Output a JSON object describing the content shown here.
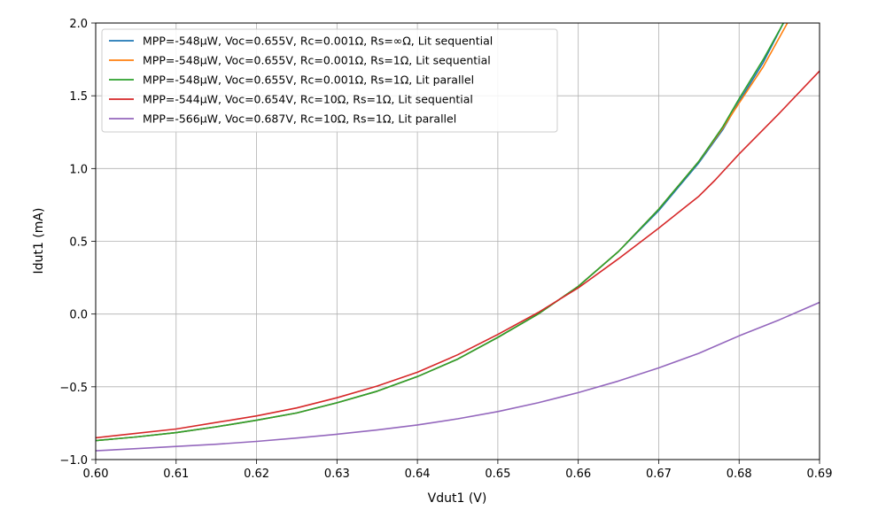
{
  "chart_data": {
    "type": "line",
    "title": "",
    "xlabel": "Vdut1 (V)",
    "ylabel": "Idut1 (mA)",
    "xlim": [
      0.6,
      0.69
    ],
    "ylim": [
      -1.0,
      2.0
    ],
    "xticks": [
      "0.60",
      "0.61",
      "0.62",
      "0.63",
      "0.64",
      "0.65",
      "0.66",
      "0.67",
      "0.68",
      "0.69"
    ],
    "yticks": [
      "2.0",
      "1.5",
      "1.0",
      "0.5",
      "0.0",
      "−0.5",
      "−1.0"
    ],
    "grid": true,
    "legend_position": "top-left",
    "series": [
      {
        "name": "MPP=-548µW, Voc=0.655V, Rc=0.001Ω, Rs=∞Ω, Lit sequential",
        "color": "#1f77b4",
        "x": [
          0.6,
          0.605,
          0.61,
          0.615,
          0.62,
          0.625,
          0.63,
          0.635,
          0.64,
          0.645,
          0.65,
          0.655,
          0.66,
          0.665,
          0.67,
          0.675,
          0.678,
          0.68,
          0.683,
          0.6855
        ],
        "y": [
          -0.87,
          -0.845,
          -0.815,
          -0.775,
          -0.73,
          -0.68,
          -0.61,
          -0.53,
          -0.43,
          -0.31,
          -0.16,
          0.0,
          0.19,
          0.43,
          0.71,
          1.04,
          1.27,
          1.46,
          1.73,
          2.0
        ]
      },
      {
        "name": "MPP=-548µW, Voc=0.655V, Rc=0.001Ω, Rs=1Ω, Lit sequential",
        "color": "#ff7f0e",
        "x": [
          0.6,
          0.605,
          0.61,
          0.615,
          0.62,
          0.625,
          0.63,
          0.635,
          0.64,
          0.645,
          0.65,
          0.655,
          0.66,
          0.665,
          0.67,
          0.675,
          0.678,
          0.68,
          0.683,
          0.686
        ],
        "y": [
          -0.87,
          -0.845,
          -0.815,
          -0.775,
          -0.73,
          -0.68,
          -0.61,
          -0.53,
          -0.43,
          -0.31,
          -0.16,
          0.0,
          0.19,
          0.43,
          0.72,
          1.05,
          1.28,
          1.45,
          1.7,
          2.0
        ]
      },
      {
        "name": "MPP=-548µW, Voc=0.655V, Rc=0.001Ω, Rs=1Ω, Lit parallel",
        "color": "#2ca02c",
        "x": [
          0.6,
          0.605,
          0.61,
          0.615,
          0.62,
          0.625,
          0.63,
          0.635,
          0.64,
          0.645,
          0.65,
          0.655,
          0.66,
          0.665,
          0.67,
          0.675,
          0.678,
          0.68,
          0.683,
          0.6855
        ],
        "y": [
          -0.87,
          -0.845,
          -0.815,
          -0.775,
          -0.73,
          -0.68,
          -0.61,
          -0.53,
          -0.43,
          -0.31,
          -0.16,
          0.0,
          0.19,
          0.43,
          0.72,
          1.05,
          1.29,
          1.48,
          1.75,
          2.0
        ]
      },
      {
        "name": "MPP=-544µW, Voc=0.654V, Rc=10Ω, Rs=1Ω, Lit sequential",
        "color": "#d62728",
        "x": [
          0.6,
          0.605,
          0.61,
          0.615,
          0.62,
          0.625,
          0.63,
          0.635,
          0.64,
          0.645,
          0.65,
          0.655,
          0.66,
          0.665,
          0.67,
          0.675,
          0.677,
          0.68,
          0.685,
          0.69
        ],
        "y": [
          -0.85,
          -0.82,
          -0.79,
          -0.745,
          -0.7,
          -0.645,
          -0.575,
          -0.495,
          -0.4,
          -0.28,
          -0.14,
          0.01,
          0.18,
          0.38,
          0.59,
          0.81,
          0.92,
          1.1,
          1.38,
          1.67
        ]
      },
      {
        "name": "MPP=-566µW, Voc=0.687V, Rc=10Ω, Rs=1Ω, Lit parallel",
        "color": "#9467bd",
        "x": [
          0.6,
          0.605,
          0.61,
          0.615,
          0.62,
          0.625,
          0.63,
          0.635,
          0.64,
          0.645,
          0.65,
          0.655,
          0.66,
          0.665,
          0.67,
          0.675,
          0.68,
          0.685,
          0.69
        ],
        "y": [
          -0.94,
          -0.925,
          -0.91,
          -0.895,
          -0.875,
          -0.852,
          -0.826,
          -0.797,
          -0.762,
          -0.72,
          -0.67,
          -0.61,
          -0.54,
          -0.46,
          -0.37,
          -0.27,
          -0.15,
          -0.04,
          0.08
        ]
      }
    ]
  }
}
